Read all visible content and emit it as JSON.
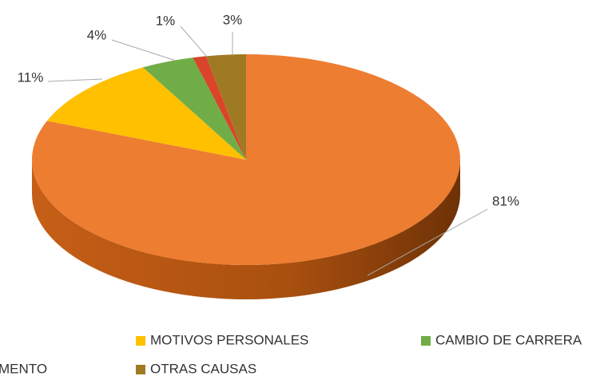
{
  "chart_data": {
    "type": "pie",
    "categories": [
      null,
      "MOTIVOS PERSONALES",
      "CAMBIO DE CARRERA",
      "MENTO",
      "OTRAS CAUSAS"
    ],
    "values": [
      81,
      11,
      4,
      1,
      3
    ],
    "value_labels": [
      "81%",
      "11%",
      "4%",
      "1%",
      "3%"
    ],
    "colors": [
      "#ED7D31",
      "#FFC000",
      "#70AD47",
      "#D9442A",
      "#A07A22"
    ]
  }
}
